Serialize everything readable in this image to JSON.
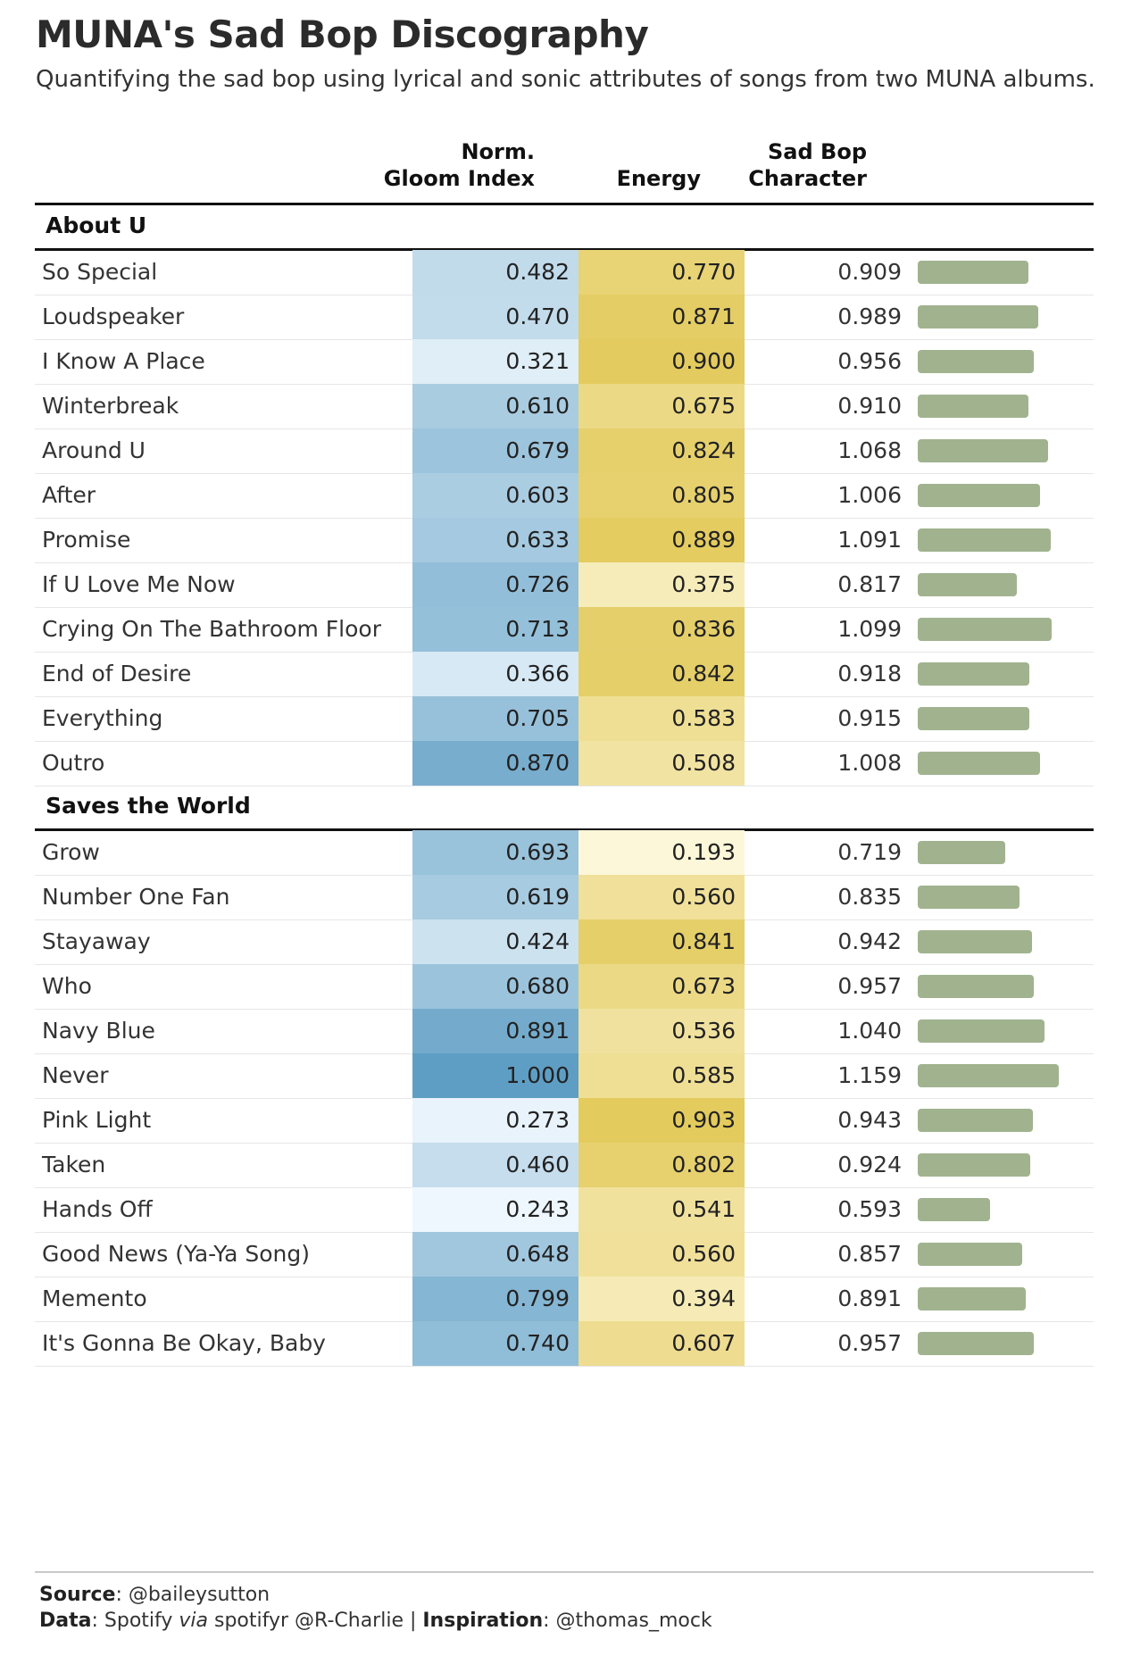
{
  "title": "MUNA's Sad Bop Discography",
  "subtitle": "Quantifying the sad bop using lyrical and sonic attributes of songs from two MUNA albums.",
  "columns": {
    "gloom_line1": "Norm.",
    "gloom_line2": "Gloom Index",
    "energy": "Energy",
    "sadbop_line1": "Sad Bop",
    "sadbop_line2": "Character"
  },
  "colors": {
    "gloom_low": "#eef7fd",
    "gloom_high": "#5f9ec4",
    "energy_low": "#fdf7d9",
    "energy_high": "#e3cb5e",
    "bar": "#a0b38e"
  },
  "footer": {
    "source_label": "Source",
    "source_text": ": @baileysutton",
    "data_label": "Data",
    "data_text_1": ": Spotify ",
    "data_via": "via",
    "data_text_2": " spotifyr @R-Charlie | ",
    "inspiration_label": "Inspiration",
    "inspiration_text": ": @thomas_mock"
  },
  "chart_data": {
    "type": "table",
    "columns": [
      "Norm. Gloom Index",
      "Energy",
      "Sad Bop Character"
    ],
    "groups": [
      {
        "name": "About U",
        "rows": [
          {
            "song": "So Special",
            "gloom": "0.482",
            "energy": "0.770",
            "sadbop": "0.909"
          },
          {
            "song": "Loudspeaker",
            "gloom": "0.470",
            "energy": "0.871",
            "sadbop": "0.989"
          },
          {
            "song": "I Know A Place",
            "gloom": "0.321",
            "energy": "0.900",
            "sadbop": "0.956"
          },
          {
            "song": "Winterbreak",
            "gloom": "0.610",
            "energy": "0.675",
            "sadbop": "0.910"
          },
          {
            "song": "Around U",
            "gloom": "0.679",
            "energy": "0.824",
            "sadbop": "1.068"
          },
          {
            "song": "After",
            "gloom": "0.603",
            "energy": "0.805",
            "sadbop": "1.006"
          },
          {
            "song": "Promise",
            "gloom": "0.633",
            "energy": "0.889",
            "sadbop": "1.091"
          },
          {
            "song": "If U Love Me Now",
            "gloom": "0.726",
            "energy": "0.375",
            "sadbop": "0.817"
          },
          {
            "song": "Crying On The Bathroom Floor",
            "gloom": "0.713",
            "energy": "0.836",
            "sadbop": "1.099"
          },
          {
            "song": "End of Desire",
            "gloom": "0.366",
            "energy": "0.842",
            "sadbop": "0.918"
          },
          {
            "song": "Everything",
            "gloom": "0.705",
            "energy": "0.583",
            "sadbop": "0.915"
          },
          {
            "song": "Outro",
            "gloom": "0.870",
            "energy": "0.508",
            "sadbop": "1.008"
          }
        ]
      },
      {
        "name": "Saves the World",
        "rows": [
          {
            "song": "Grow",
            "gloom": "0.693",
            "energy": "0.193",
            "sadbop": "0.719"
          },
          {
            "song": "Number One Fan",
            "gloom": "0.619",
            "energy": "0.560",
            "sadbop": "0.835"
          },
          {
            "song": "Stayaway",
            "gloom": "0.424",
            "energy": "0.841",
            "sadbop": "0.942"
          },
          {
            "song": "Who",
            "gloom": "0.680",
            "energy": "0.673",
            "sadbop": "0.957"
          },
          {
            "song": "Navy Blue",
            "gloom": "0.891",
            "energy": "0.536",
            "sadbop": "1.040"
          },
          {
            "song": "Never",
            "gloom": "1.000",
            "energy": "0.585",
            "sadbop": "1.159"
          },
          {
            "song": "Pink Light",
            "gloom": "0.273",
            "energy": "0.903",
            "sadbop": "0.943"
          },
          {
            "song": "Taken",
            "gloom": "0.460",
            "energy": "0.802",
            "sadbop": "0.924"
          },
          {
            "song": "Hands Off",
            "gloom": "0.243",
            "energy": "0.541",
            "sadbop": "0.593"
          },
          {
            "song": "Good News (Ya-Ya Song)",
            "gloom": "0.648",
            "energy": "0.560",
            "sadbop": "0.857"
          },
          {
            "song": "Memento",
            "gloom": "0.799",
            "energy": "0.394",
            "sadbop": "0.891"
          },
          {
            "song": "It's Gonna Be Okay, Baby",
            "gloom": "0.740",
            "energy": "0.607",
            "sadbop": "0.957"
          }
        ]
      }
    ]
  }
}
